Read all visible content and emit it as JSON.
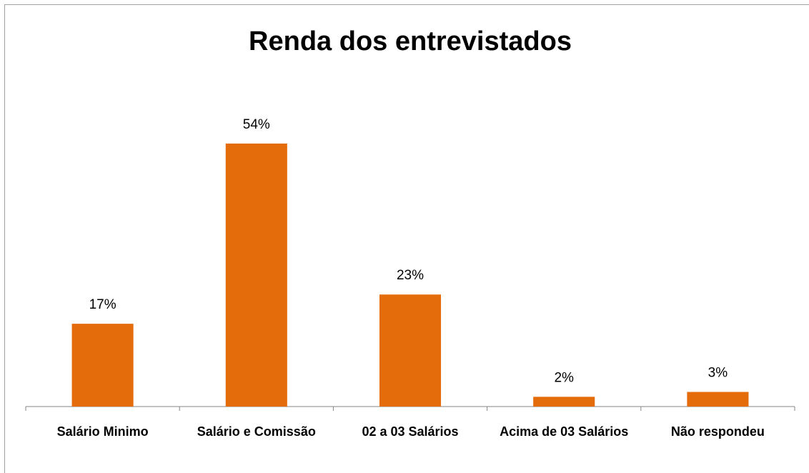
{
  "chart_data": {
    "type": "bar",
    "title": "Renda dos entrevistados",
    "categories": [
      "Salário Minimo",
      "Salário e Comissão",
      "02 a 03 Salários",
      "Acima de 03 Salários",
      "Não respondeu"
    ],
    "values": [
      17,
      54,
      23,
      2,
      3
    ],
    "value_labels": [
      "17%",
      "54%",
      "23%",
      "2%",
      "3%"
    ],
    "color": "#e46c0a",
    "ylim": [
      0,
      60
    ]
  }
}
